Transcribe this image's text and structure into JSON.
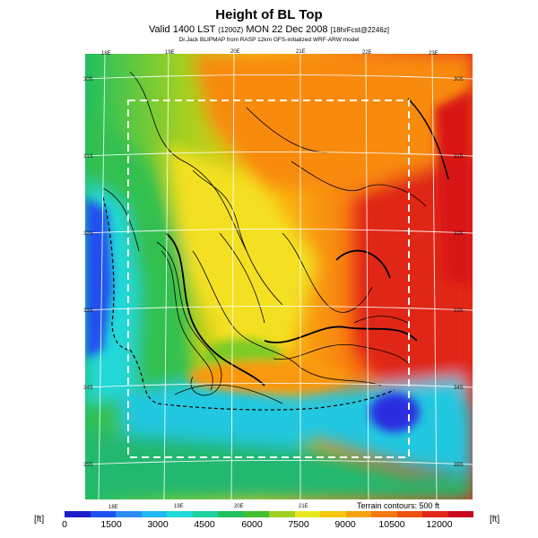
{
  "header": {
    "title": "Height of BL Top",
    "subtitle_main": "Valid 1400 LST",
    "subtitle_code": "(1200Z)",
    "subtitle_date": "MON 22 Dec 2008",
    "subtitle_run": "[18hrFcst@2246z]",
    "credit": "Dr.Jack BLIPMAP from RASP 12km GFS-initialized WRF-ARW model"
  },
  "map": {
    "lon_labels_top": [
      "18E",
      "19E",
      "20E",
      "21E",
      "22E",
      "23E"
    ],
    "lon_labels_bottom": [
      "18E",
      "19E",
      "20E",
      "21E"
    ],
    "lat_labels_right": [
      "30S",
      "31S",
      "32S",
      "33S",
      "34S",
      "35S"
    ],
    "lat_labels_left": [
      "30S",
      "31S",
      "32S",
      "33S",
      "34S",
      "35S"
    ],
    "terrain_note": "Terrain contours: 500 ft"
  },
  "colorbar": {
    "unit": "[ft]",
    "ticks": [
      "0",
      "1500",
      "3000",
      "4500",
      "6000",
      "7500",
      "9000",
      "10500",
      "12000"
    ],
    "colors": [
      "#1e1ec8",
      "#2050f0",
      "#2c8cf8",
      "#20b8f0",
      "#20d8d8",
      "#20d0a0",
      "#20c060",
      "#40c030",
      "#a0d020",
      "#e8e820",
      "#f8c810",
      "#f8a010",
      "#f87810",
      "#f05010",
      "#e02818",
      "#c80820"
    ]
  }
}
